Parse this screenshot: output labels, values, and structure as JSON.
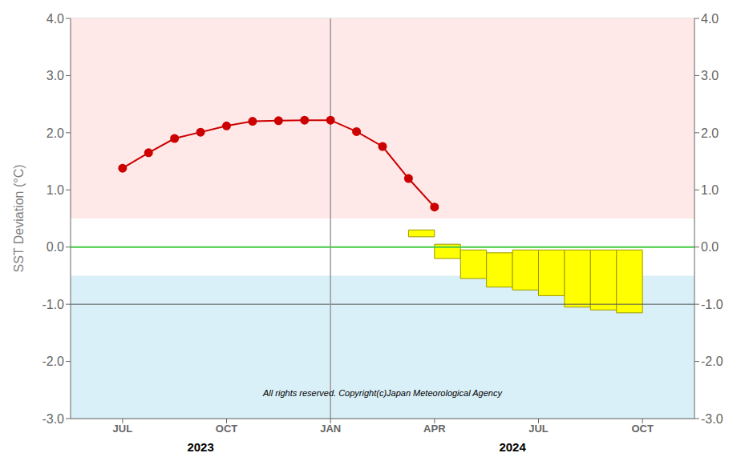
{
  "chart_data": {
    "type": "line",
    "ylabel": "SST Deviation (°C)",
    "xlim": [
      2,
      26
    ],
    "xticks": [
      {
        "value": 4,
        "label": "JUL"
      },
      {
        "value": 8,
        "label": "OCT"
      },
      {
        "value": 12,
        "label": "JAN"
      },
      {
        "value": 16,
        "label": "APR"
      },
      {
        "value": 20,
        "label": "JUL"
      },
      {
        "value": 24,
        "label": "OCT"
      }
    ],
    "ylim": [
      -3.0,
      4.0
    ],
    "yticks": [
      {
        "value": -3.0,
        "label": "-3.0"
      },
      {
        "value": -2.0,
        "label": "-2.0"
      },
      {
        "value": -1.0,
        "label": "-1.0"
      },
      {
        "value": 0.0,
        "label": "0.0"
      },
      {
        "value": 1.0,
        "label": "1.0"
      },
      {
        "value": 2.0,
        "label": "2.0"
      },
      {
        "value": 3.0,
        "label": "3.0"
      },
      {
        "value": 4.0,
        "label": "4.0"
      }
    ],
    "y2lim": [
      -3.0,
      4.0
    ],
    "y2ticks": [
      {
        "value": -3.0,
        "label": "-3.0"
      },
      {
        "value": -2.0,
        "label": "-2.0"
      },
      {
        "value": -1.0,
        "label": "-1.0"
      },
      {
        "value": 0.0,
        "label": "0.0"
      },
      {
        "value": 1.0,
        "label": "1.0"
      },
      {
        "value": 2.0,
        "label": "2.0"
      },
      {
        "value": 3.0,
        "label": "3.0"
      },
      {
        "value": 4.0,
        "label": "4.0"
      }
    ],
    "grid": true,
    "series": [
      {
        "type": "line",
        "x": [
          4,
          5,
          6,
          7,
          8,
          9,
          10,
          11,
          12,
          13,
          14,
          15,
          16
        ],
        "values": [
          1.38,
          1.65,
          1.9,
          2.01,
          2.12,
          2.2,
          2.21,
          2.22,
          2.22,
          2.02,
          1.76,
          1.2,
          0.7
        ],
        "color": "#cc0000",
        "marker": "circle"
      },
      {
        "type": "bar",
        "x": [
          15.0,
          16.0,
          17.0,
          18.0,
          19.0,
          20.0,
          21.0,
          22.0,
          23.0
        ],
        "top": [
          0.3,
          0.05,
          -0.05,
          -0.1,
          -0.05,
          -0.05,
          -0.05,
          -0.05,
          -0.05
        ],
        "bottom": [
          0.18,
          -0.2,
          -0.55,
          -0.7,
          -0.75,
          -0.85,
          -1.05,
          -1.1,
          -1.15
        ],
        "color": "#ffff00"
      }
    ],
    "bands": [
      {
        "from": 0.5,
        "to": 4.0,
        "color": "#ffe8e8"
      },
      {
        "from": -3.0,
        "to": -0.5,
        "color": "#daf0f8"
      }
    ],
    "reference_lines": [
      {
        "y": 0.0,
        "color": "#44cc44"
      },
      {
        "y": -1.0,
        "color": "#555555"
      },
      {
        "x": 12,
        "color": "#999999"
      }
    ],
    "annotations": [
      {
        "text": "All rights reserved. Copyright(c)Japan Meteorological Agency",
        "x": 14,
        "y": -2.55
      },
      {
        "text": "2023",
        "x": 7
      },
      {
        "text": "2024",
        "x": 19
      }
    ]
  }
}
